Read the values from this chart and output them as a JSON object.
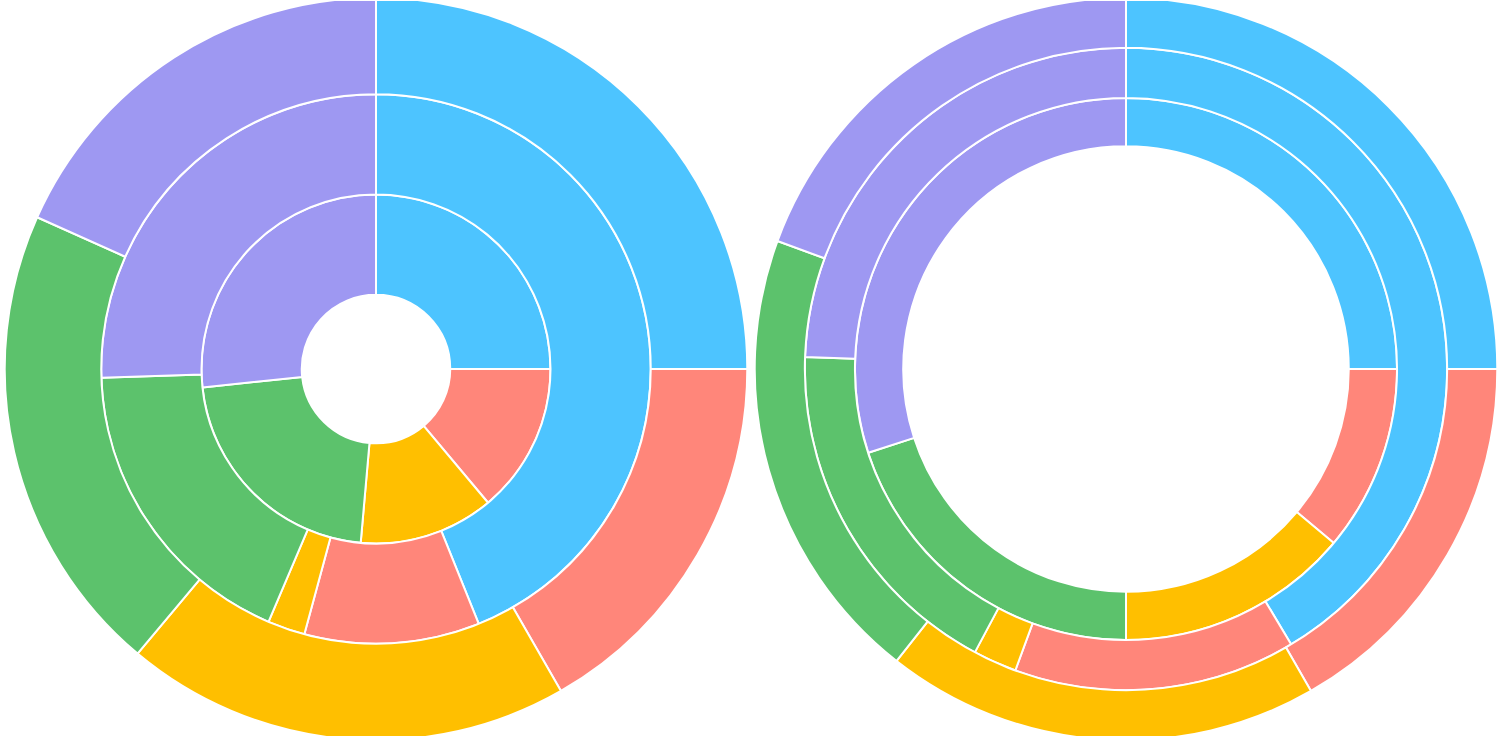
{
  "chart_data": [
    {
      "type": "donut",
      "categories": [
        null,
        null,
        null,
        null,
        null
      ],
      "series": [
        {
          "values": [
            25,
            13.9,
            12.5,
            21.9,
            26.7
          ],
          "colors": [
            "#4dc4ff",
            "#ff867a",
            "#ffbf00",
            "#5cc26c",
            "#9e98f2"
          ]
        },
        {
          "values": [
            43.9,
            10.3,
            2.2,
            18.1,
            25.5
          ],
          "colors": [
            "#4dc4ff",
            "#ff867a",
            "#ffbf00",
            "#5cc26c",
            "#9e98f2"
          ]
        },
        {
          "values": [
            25,
            16.7,
            19.4,
            20.6,
            18.3
          ],
          "colors": [
            "#4dc4ff",
            "#ff867a",
            "#ffbf00",
            "#5cc26c",
            "#9e98f2"
          ]
        }
      ]
    },
    {
      "type": "donut",
      "categories": [
        null,
        null,
        null,
        null,
        null
      ],
      "series": [
        {
          "values": [
            25,
            11.1,
            13.9,
            20,
            30
          ],
          "colors": [
            "#4dc4ff",
            "#ff867a",
            "#ffbf00",
            "#5cc26c",
            "#9e98f2"
          ]
        },
        {
          "values": [
            41.4,
            14.2,
            2.2,
            17.8,
            24.4
          ],
          "colors": [
            "#4dc4ff",
            "#ff867a",
            "#ffbf00",
            "#5cc26c",
            "#9e98f2"
          ]
        },
        {
          "values": [
            25,
            16.7,
            18.9,
            20,
            19.4
          ],
          "colors": [
            "#4dc4ff",
            "#ff867a",
            "#ffbf00",
            "#5cc26c",
            "#9e98f2"
          ]
        }
      ]
    }
  ]
}
